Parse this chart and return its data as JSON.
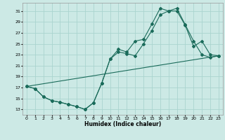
{
  "xlabel": "Humidex (Indice chaleur)",
  "bg_color": "#cce9e5",
  "grid_color": "#aad4cf",
  "line_color": "#1a6b5a",
  "x_ticks": [
    0,
    1,
    2,
    3,
    4,
    5,
    6,
    7,
    8,
    9,
    10,
    11,
    12,
    13,
    14,
    15,
    16,
    17,
    18,
    19,
    20,
    21,
    22,
    23
  ],
  "y_ticks": [
    13,
    15,
    17,
    19,
    21,
    23,
    25,
    27,
    29,
    31
  ],
  "xlim": [
    -0.5,
    23.5
  ],
  "ylim": [
    12.0,
    32.5
  ],
  "line1_x": [
    0,
    1,
    2,
    3,
    4,
    5,
    6,
    7,
    8,
    9,
    10,
    11,
    12,
    13,
    14,
    15,
    16,
    17,
    18,
    19,
    20,
    21,
    22,
    23
  ],
  "line1_y": [
    17.2,
    16.8,
    15.3,
    14.6,
    14.3,
    13.9,
    13.5,
    13.0,
    14.2,
    17.8,
    22.2,
    24.0,
    23.5,
    25.5,
    25.8,
    28.6,
    31.5,
    31.0,
    31.5,
    28.5,
    25.5,
    23.0,
    22.5,
    22.8
  ],
  "line2_x": [
    0,
    1,
    2,
    3,
    4,
    5,
    6,
    7,
    8,
    9,
    10,
    11,
    12,
    13,
    14,
    15,
    16,
    17,
    18,
    19,
    20,
    21,
    22,
    23
  ],
  "line2_y": [
    17.2,
    16.8,
    15.3,
    14.6,
    14.3,
    13.9,
    13.5,
    13.0,
    14.2,
    17.8,
    22.2,
    23.5,
    23.2,
    22.8,
    25.0,
    27.4,
    30.3,
    31.0,
    31.0,
    28.4,
    24.5,
    25.5,
    23.0,
    22.8
  ],
  "line3_x": [
    0,
    23
  ],
  "line3_y": [
    17.2,
    22.8
  ]
}
